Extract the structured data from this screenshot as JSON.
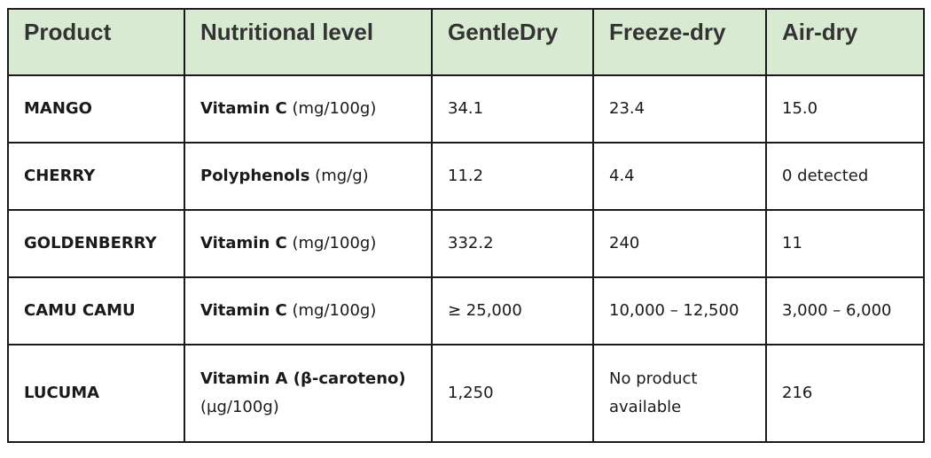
{
  "table": {
    "headers": [
      "Product",
      "Nutritional level",
      "GentleDry",
      "Freeze-dry",
      "Air-dry"
    ],
    "rows": [
      {
        "product": "MANGO",
        "nutrient": "Vitamin C",
        "unit": "(mg/100g)",
        "gentledry": "34.1",
        "freeze_dry": "23.4",
        "air_dry": "15.0"
      },
      {
        "product": "CHERRY",
        "nutrient": "Polyphenols",
        "unit": "(mg/g)",
        "gentledry": "11.2",
        "freeze_dry": "4.4",
        "air_dry": "0 detected"
      },
      {
        "product": "GOLDENBERRY",
        "nutrient": "Vitamin C",
        "unit": "(mg/100g)",
        "gentledry": "332.2",
        "freeze_dry": "240",
        "air_dry": "11"
      },
      {
        "product": "CAMU CAMU",
        "nutrient": "Vitamin C",
        "unit": "(mg/100g)",
        "gentledry": "≥ 25,000",
        "freeze_dry": "10,000 – 12,500",
        "air_dry": "3,000 – 6,000"
      },
      {
        "product": "LUCUMA",
        "nutrient": "Vitamin A (β-caroteno)",
        "unit": "(µg/100g)",
        "gentledry": "1,250",
        "freeze_dry": "No product available",
        "air_dry": "216"
      }
    ]
  },
  "colors": {
    "header_background": "#d9ead3",
    "header_text": "#333333",
    "border": "#1a1a1a"
  }
}
